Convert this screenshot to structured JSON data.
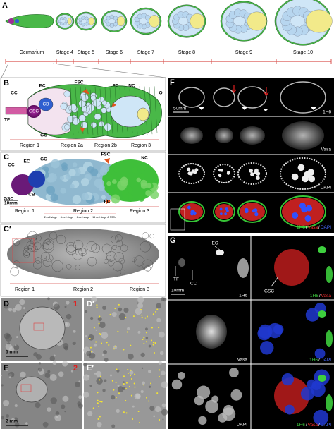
{
  "A": {
    "label": "A",
    "stages": [
      "Germarium",
      "Stage 4",
      "Stage 5",
      "Stage 6",
      "Stage 7",
      "Stage 8",
      "Stage 9",
      "Stage 10"
    ]
  },
  "B": {
    "label": "B",
    "labels": [
      "CC",
      "EC",
      "FSC",
      "FC",
      "NC",
      "O",
      "TF",
      "GSC",
      "CB",
      "GC"
    ],
    "regions": [
      "Region 1",
      "Region 2a",
      "Region 2b",
      "Region 3"
    ]
  },
  "C": {
    "label": "C",
    "labels": [
      "CC",
      "EC",
      "GC",
      "FSC",
      "NC",
      "GSC",
      "CB",
      "FC"
    ],
    "scale": "10mm",
    "regions": [
      "Region 1",
      "Region 2",
      "Region 3"
    ],
    "stages": [
      "2-cell stage",
      "4-cell stage",
      "8-cell stage",
      "16 cell stage & FSCs"
    ]
  },
  "C_prime": {
    "label": "C′",
    "regions": [
      "Region 1",
      "Region 2",
      "Region 3"
    ]
  },
  "D": {
    "label": "D",
    "marker": "1",
    "scale": "5 mm"
  },
  "D_prime": {
    "label": "D′"
  },
  "E": {
    "label": "E",
    "marker": "2",
    "scale": "2 mm"
  },
  "E_prime": {
    "label": "E′"
  },
  "F": {
    "label": "F",
    "scale": "50mm",
    "channels": [
      "1H6",
      "Vasa",
      "DAPI"
    ],
    "merge": [
      "1H6",
      "/",
      "Vasa",
      "/",
      "DAPI"
    ]
  },
  "G": {
    "label": "G",
    "labels": [
      "EC",
      "TF",
      "CC",
      "GSC"
    ],
    "scale": "10mm",
    "channels": [
      "1H6",
      "Vasa",
      "DAPI"
    ],
    "merges": [
      [
        "1H6",
        "/",
        "Vasa"
      ],
      [
        "1H6",
        "/",
        "DAPI"
      ],
      [
        "1H6",
        "/",
        "Vasa",
        "/",
        "DAPI"
      ]
    ]
  }
}
